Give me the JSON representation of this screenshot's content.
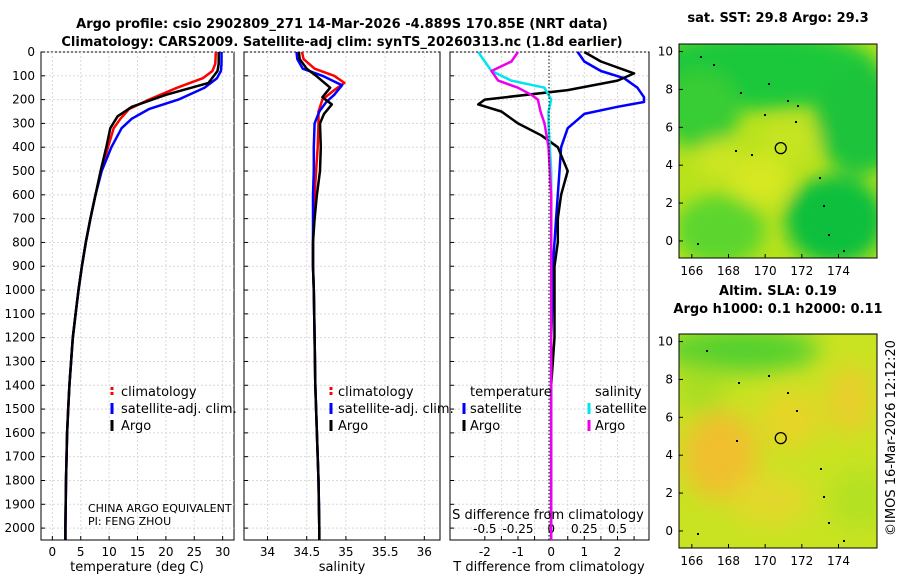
{
  "header": {
    "title_line1": "Argo profile: csio 2902809_271 14-Mar-2026 -4.889S 170.85E (NRT data)",
    "title_line2": "Climatology: CARS2009. Satellite-adj clim: synTS_20260313.nc (1.8d earlier)"
  },
  "credits": {
    "line1": "CHINA ARGO EQUIVALENT",
    "line2": "PI: FENG ZHOU",
    "stamp": "©IMOS 16-Mar-2026 12:12:20"
  },
  "colors": {
    "climatology": "#ff0000",
    "satellite": "#0000ff",
    "argo": "#000000",
    "s_satellite": "#00e5ee",
    "s_argo": "#ee00ee"
  },
  "chart_data": [
    {
      "type": "line",
      "title": "Temperature profile",
      "xlabel": "temperature (deg C)",
      "xticks": [
        "0",
        "5",
        "10",
        "15",
        "20",
        "25",
        "30"
      ],
      "xlim": [
        -2,
        32
      ],
      "ylim": [
        2050,
        0
      ],
      "yticks": [
        "0",
        "100",
        "200",
        "300",
        "400",
        "500",
        "600",
        "700",
        "800",
        "900",
        "1000",
        "1100",
        "1200",
        "1300",
        "1400",
        "1500",
        "1600",
        "1700",
        "1800",
        "1900",
        "2000"
      ],
      "legend": [
        "climatology",
        "satellite-adj. clim.",
        "Argo"
      ],
      "series": [
        {
          "name": "climatology",
          "x": [
            28.8,
            28.7,
            28.2,
            26.5,
            22,
            17,
            13.5,
            12,
            10.8,
            9.8,
            8.6,
            7.6,
            6.7,
            5.9,
            5.2,
            4.6,
            4.1,
            3.6,
            3.3,
            3.0,
            2.8,
            2.6,
            2.4,
            2.3,
            2.3
          ],
          "y": [
            0,
            50,
            80,
            110,
            150,
            200,
            240,
            280,
            320,
            400,
            500,
            600,
            700,
            800,
            900,
            1000,
            1100,
            1200,
            1300,
            1400,
            1500,
            1600,
            1800,
            2000,
            2050
          ]
        },
        {
          "name": "satellite-adj. clim.",
          "x": [
            29.8,
            29.8,
            29.7,
            29.0,
            26.8,
            22.2,
            17.0,
            14.0,
            12.2,
            10.4,
            8.7,
            7.6,
            6.7,
            5.9,
            5.2,
            4.6,
            4.1,
            3.6,
            3.3,
            3.0,
            2.8,
            2.6,
            2.4,
            2.3,
            2.3
          ],
          "y": [
            0,
            50,
            80,
            110,
            150,
            200,
            240,
            280,
            320,
            400,
            500,
            600,
            700,
            800,
            900,
            1000,
            1100,
            1200,
            1300,
            1400,
            1500,
            1600,
            1800,
            2000,
            2050
          ]
        },
        {
          "name": "Argo",
          "x": [
            29.3,
            29.3,
            29.1,
            27.5,
            20,
            14,
            11.5,
            10.2,
            9.5,
            8.5,
            7.6,
            6.7,
            5.9,
            5.2,
            4.6,
            4.1,
            3.6,
            3.3,
            3.0,
            2.8,
            2.6,
            2.4,
            2.3,
            2.3
          ],
          "y": [
            0,
            50,
            80,
            130,
            180,
            230,
            270,
            320,
            400,
            500,
            600,
            700,
            800,
            900,
            1000,
            1100,
            1200,
            1300,
            1400,
            1500,
            1600,
            1800,
            2000,
            2050
          ]
        }
      ]
    },
    {
      "type": "line",
      "title": "Salinity profile",
      "xlabel": "salinity",
      "xticks": [
        "34",
        "34.5",
        "35",
        "35.5",
        "36"
      ],
      "xlim": [
        33.7,
        36.2
      ],
      "ylim": [
        2050,
        0
      ],
      "legend": [
        "climatology",
        "satellite-adj. clim.",
        "Argo"
      ],
      "series": [
        {
          "name": "climatology",
          "x": [
            34.44,
            34.46,
            34.6,
            34.85,
            34.98,
            34.85,
            34.7,
            34.65,
            34.65,
            34.64,
            34.62,
            34.6,
            34.59,
            34.58,
            34.58,
            34.59,
            34.6,
            34.61,
            34.62,
            34.63,
            34.64,
            34.65,
            34.66,
            34.66
          ],
          "y": [
            0,
            30,
            70,
            100,
            130,
            160,
            200,
            250,
            300,
            400,
            500,
            600,
            700,
            800,
            900,
            1000,
            1200,
            1400,
            1500,
            1600,
            1700,
            1800,
            2000,
            2050
          ]
        },
        {
          "name": "satellite-adj. clim.",
          "x": [
            34.37,
            34.38,
            34.45,
            34.7,
            34.95,
            34.85,
            34.75,
            34.66,
            34.6,
            34.59,
            34.59,
            34.58,
            34.58,
            34.58,
            34.58,
            34.59,
            34.6,
            34.61,
            34.62,
            34.63,
            34.64,
            34.65,
            34.66,
            34.66
          ],
          "y": [
            0,
            30,
            70,
            100,
            140,
            180,
            210,
            250,
            300,
            400,
            500,
            600,
            700,
            800,
            900,
            1000,
            1200,
            1400,
            1500,
            1600,
            1700,
            1800,
            2000,
            2050
          ]
        },
        {
          "name": "Argo",
          "x": [
            34.4,
            34.41,
            34.5,
            34.62,
            34.8,
            34.7,
            34.82,
            34.72,
            34.67,
            34.68,
            34.67,
            34.63,
            34.6,
            34.58,
            34.58,
            34.59,
            34.6,
            34.61,
            34.62,
            34.63,
            34.64,
            34.65,
            34.66,
            34.66
          ],
          "y": [
            0,
            30,
            70,
            100,
            150,
            190,
            220,
            260,
            300,
            400,
            500,
            600,
            700,
            800,
            900,
            1000,
            1200,
            1400,
            1500,
            1600,
            1700,
            1800,
            2000,
            2050
          ]
        }
      ]
    },
    {
      "type": "line",
      "title": "Difference from climatology",
      "xlabel": "T difference from climatology",
      "xlabel_top": "S difference from climatology",
      "xticks": [
        "-2",
        "-1.5",
        "-1",
        "-0.5",
        "0",
        "0.5",
        "1",
        "1.5",
        "2",
        "2.5"
      ],
      "xtick_labels_shown": [
        "-2",
        "-1",
        "0",
        "1",
        "2"
      ],
      "xticks_top": [
        "-0.5",
        "-0.25",
        "0",
        "0.25",
        "0.5"
      ],
      "xlim": [
        -3.05,
        2.95
      ],
      "ylim": [
        2050,
        0
      ],
      "legend_t_title": "temperature",
      "legend_s_title": "salinity",
      "legend_t": [
        "satellite",
        "Argo"
      ],
      "legend_s": [
        "satellite",
        "Argo"
      ],
      "series": [
        {
          "name": "T satellite",
          "x": [
            0.8,
            1.0,
            1.5,
            2.2,
            2.6,
            2.8,
            2.8,
            2.0,
            1.0,
            0.5,
            0.3,
            0.25,
            0.2,
            0.15,
            0.1,
            0.05,
            0.05,
            0.0,
            0.0,
            0.0,
            0.0,
            0.0
          ],
          "y": [
            0,
            40,
            80,
            110,
            150,
            190,
            210,
            230,
            260,
            320,
            400,
            500,
            600,
            700,
            800,
            900,
            1000,
            1200,
            1400,
            1600,
            1800,
            2050
          ]
        },
        {
          "name": "T Argo",
          "x": [
            1.0,
            1.5,
            2.5,
            2.0,
            0.5,
            -2.0,
            -2.2,
            -1.5,
            -1.0,
            -0.3,
            0.2,
            0.5,
            0.3,
            0.2,
            0.2,
            0.1,
            0.1,
            0.1,
            0.0,
            0.0,
            0.0,
            0.0
          ],
          "y": [
            0,
            40,
            90,
            120,
            160,
            200,
            220,
            250,
            300,
            350,
            400,
            500,
            600,
            700,
            800,
            900,
            1000,
            1200,
            1400,
            1600,
            1800,
            2050
          ]
        },
        {
          "name": "S satellite",
          "x": [
            -0.55,
            -0.5,
            -0.45,
            -0.3,
            -0.05,
            0.0,
            -0.02,
            -0.02,
            -0.01,
            0.0,
            0.0,
            0.0,
            0.0,
            0.0,
            0.0,
            0.0,
            0.0,
            0.0,
            0.0,
            0.0
          ],
          "y": [
            0,
            40,
            80,
            120,
            150,
            200,
            250,
            300,
            400,
            500,
            600,
            700,
            800,
            900,
            1000,
            1200,
            1400,
            1600,
            1800,
            2050
          ]
        },
        {
          "name": "S Argo",
          "x": [
            -0.25,
            -0.3,
            -0.45,
            -0.4,
            -0.25,
            -0.15,
            -0.1,
            -0.08,
            -0.05,
            -0.02,
            -0.01,
            0.0,
            0.0,
            0.0,
            0.0,
            0.0,
            0.0,
            0.0,
            0.0,
            0.0
          ],
          "y": [
            0,
            40,
            80,
            120,
            150,
            180,
            200,
            250,
            300,
            400,
            500,
            600,
            700,
            800,
            900,
            1000,
            1200,
            1400,
            1800,
            2050
          ]
        }
      ]
    },
    {
      "type": "heatmap",
      "title": "sat. SST: 29.8  Argo: 29.3",
      "xticks": [
        "166",
        "168",
        "170",
        "172",
        "174"
      ],
      "yticks": [
        "0",
        "2",
        "4",
        "6",
        "8",
        "10"
      ],
      "xlim": [
        165.3,
        176.1
      ],
      "ylim": [
        -0.9,
        10.4
      ],
      "marker": {
        "lon": 170.85,
        "lat": 4.9
      }
    },
    {
      "type": "heatmap",
      "title": "Altim. SLA: 0.19",
      "subtitle": "Argo h1000: 0.1  h2000: 0.11",
      "xticks": [
        "166",
        "168",
        "170",
        "172",
        "174"
      ],
      "yticks": [
        "0",
        "2",
        "4",
        "6",
        "8",
        "10"
      ],
      "xlim": [
        165.3,
        176.1
      ],
      "ylim": [
        -0.9,
        10.4
      ],
      "marker": {
        "lon": 170.85,
        "lat": 4.9
      }
    }
  ]
}
